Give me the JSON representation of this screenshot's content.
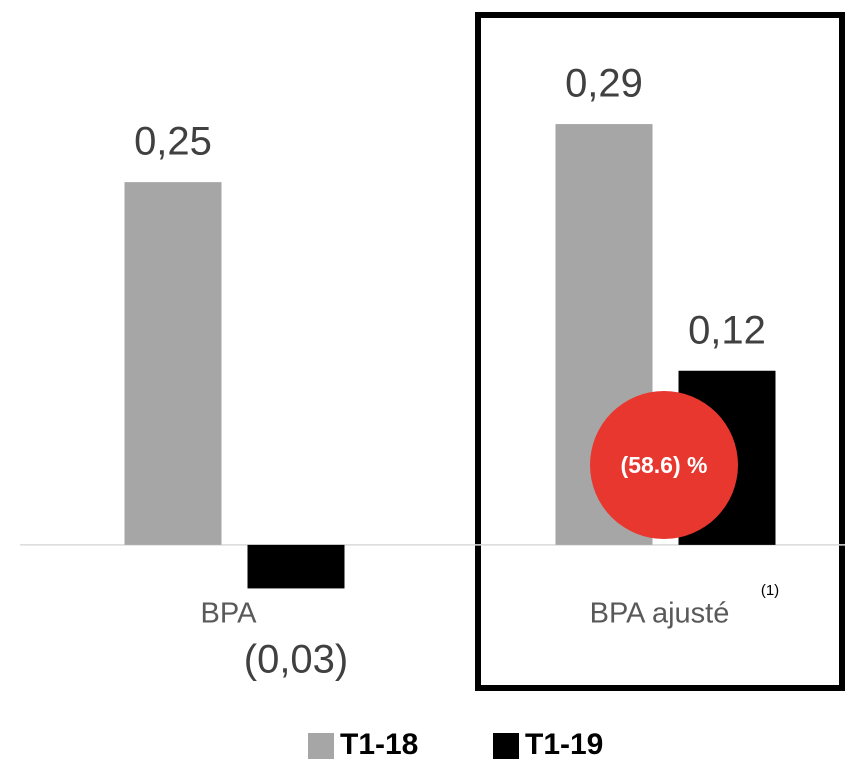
{
  "chart_data": {
    "type": "bar",
    "categories": [
      "BPA",
      "BPA ajusté"
    ],
    "series": [
      {
        "name": "T1-18",
        "color": "#a6a6a6",
        "values": [
          0.25,
          0.29
        ],
        "value_labels": [
          "0,25",
          "0,29"
        ]
      },
      {
        "name": "T1-19",
        "color": "#000000",
        "values": [
          -0.03,
          0.12
        ],
        "value_labels": [
          "(0,03)",
          "0,12"
        ]
      }
    ],
    "ylim": [
      -0.1,
      0.35
    ],
    "annotations": [
      "(1)",
      "(58.6) %"
    ],
    "highlight_color": "#e8372f",
    "legend": "bottom"
  }
}
